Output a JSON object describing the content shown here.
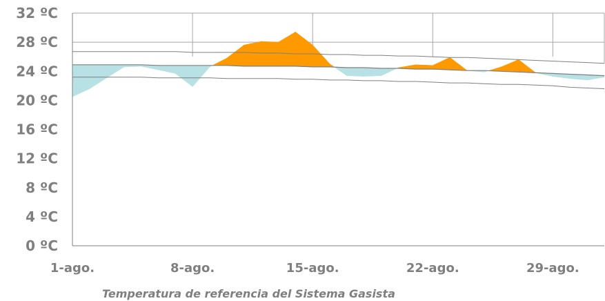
{
  "chart_data": {
    "type": "area",
    "title": "Temperatura de referencia del Sistema Gasista",
    "xlabel": "",
    "ylabel": "",
    "ylim": [
      0,
      32
    ],
    "yticks": [
      {
        "value": 0,
        "label": "0 ºC"
      },
      {
        "value": 4,
        "label": "4 ºC"
      },
      {
        "value": 8,
        "label": "8 ºC"
      },
      {
        "value": 12,
        "label": "12 ºC"
      },
      {
        "value": 16,
        "label": "16 ºC"
      },
      {
        "value": 20,
        "label": "20 ºC"
      },
      {
        "value": 24,
        "label": "24 ºC"
      },
      {
        "value": 28,
        "label": "28 ºC"
      },
      {
        "value": 32,
        "label": "32 ºC"
      }
    ],
    "xlim": [
      1,
      32
    ],
    "xticks": [
      {
        "day": 1,
        "label": "1-ago."
      },
      {
        "day": 8,
        "label": "8-ago."
      },
      {
        "day": 15,
        "label": "15-ago."
      },
      {
        "day": 22,
        "label": "22-ago."
      },
      {
        "day": 29,
        "label": "29-ago."
      }
    ],
    "grid": true,
    "colors": {
      "above": "#ff9900",
      "below": "#b7e1e4",
      "lines": "#7f7f7f",
      "grid": "#a6a6a6",
      "axis": "#7f7f7f"
    },
    "days": [
      1,
      2,
      3,
      4,
      5,
      6,
      7,
      8,
      9,
      10,
      11,
      12,
      13,
      14,
      15,
      16,
      17,
      18,
      19,
      20,
      21,
      22,
      23,
      24,
      25,
      26,
      27,
      28,
      29,
      30,
      31,
      32
    ],
    "actual": [
      20.5,
      21.6,
      23.1,
      24.6,
      24.7,
      24.2,
      23.7,
      21.9,
      24.6,
      25.8,
      27.6,
      28.1,
      28.0,
      29.4,
      27.6,
      25.0,
      23.4,
      23.3,
      23.4,
      24.5,
      24.9,
      24.8,
      25.9,
      24.1,
      23.9,
      24.6,
      25.6,
      23.8,
      23.3,
      23.0,
      22.8,
      23.2
    ],
    "reference": [
      24.9,
      24.9,
      24.9,
      24.9,
      24.9,
      24.8,
      24.8,
      24.8,
      24.8,
      24.8,
      24.7,
      24.7,
      24.7,
      24.7,
      24.6,
      24.6,
      24.5,
      24.5,
      24.4,
      24.4,
      24.3,
      24.3,
      24.2,
      24.1,
      24.1,
      24.0,
      23.9,
      23.8,
      23.7,
      23.6,
      23.5,
      23.4
    ],
    "upper": [
      26.7,
      26.7,
      26.7,
      26.7,
      26.7,
      26.7,
      26.7,
      26.6,
      26.6,
      26.6,
      26.6,
      26.5,
      26.5,
      26.4,
      26.4,
      26.3,
      26.3,
      26.2,
      26.2,
      26.1,
      26.1,
      26.0,
      25.9,
      25.9,
      25.8,
      25.7,
      25.6,
      25.5,
      25.4,
      25.3,
      25.2,
      25.1
    ],
    "lower": [
      23.2,
      23.2,
      23.2,
      23.2,
      23.2,
      23.1,
      23.1,
      23.1,
      23.1,
      23.0,
      23.0,
      23.0,
      23.0,
      22.9,
      22.9,
      22.8,
      22.8,
      22.7,
      22.7,
      22.6,
      22.6,
      22.5,
      22.4,
      22.4,
      22.3,
      22.2,
      22.2,
      22.1,
      22.0,
      21.8,
      21.7,
      21.6
    ]
  }
}
